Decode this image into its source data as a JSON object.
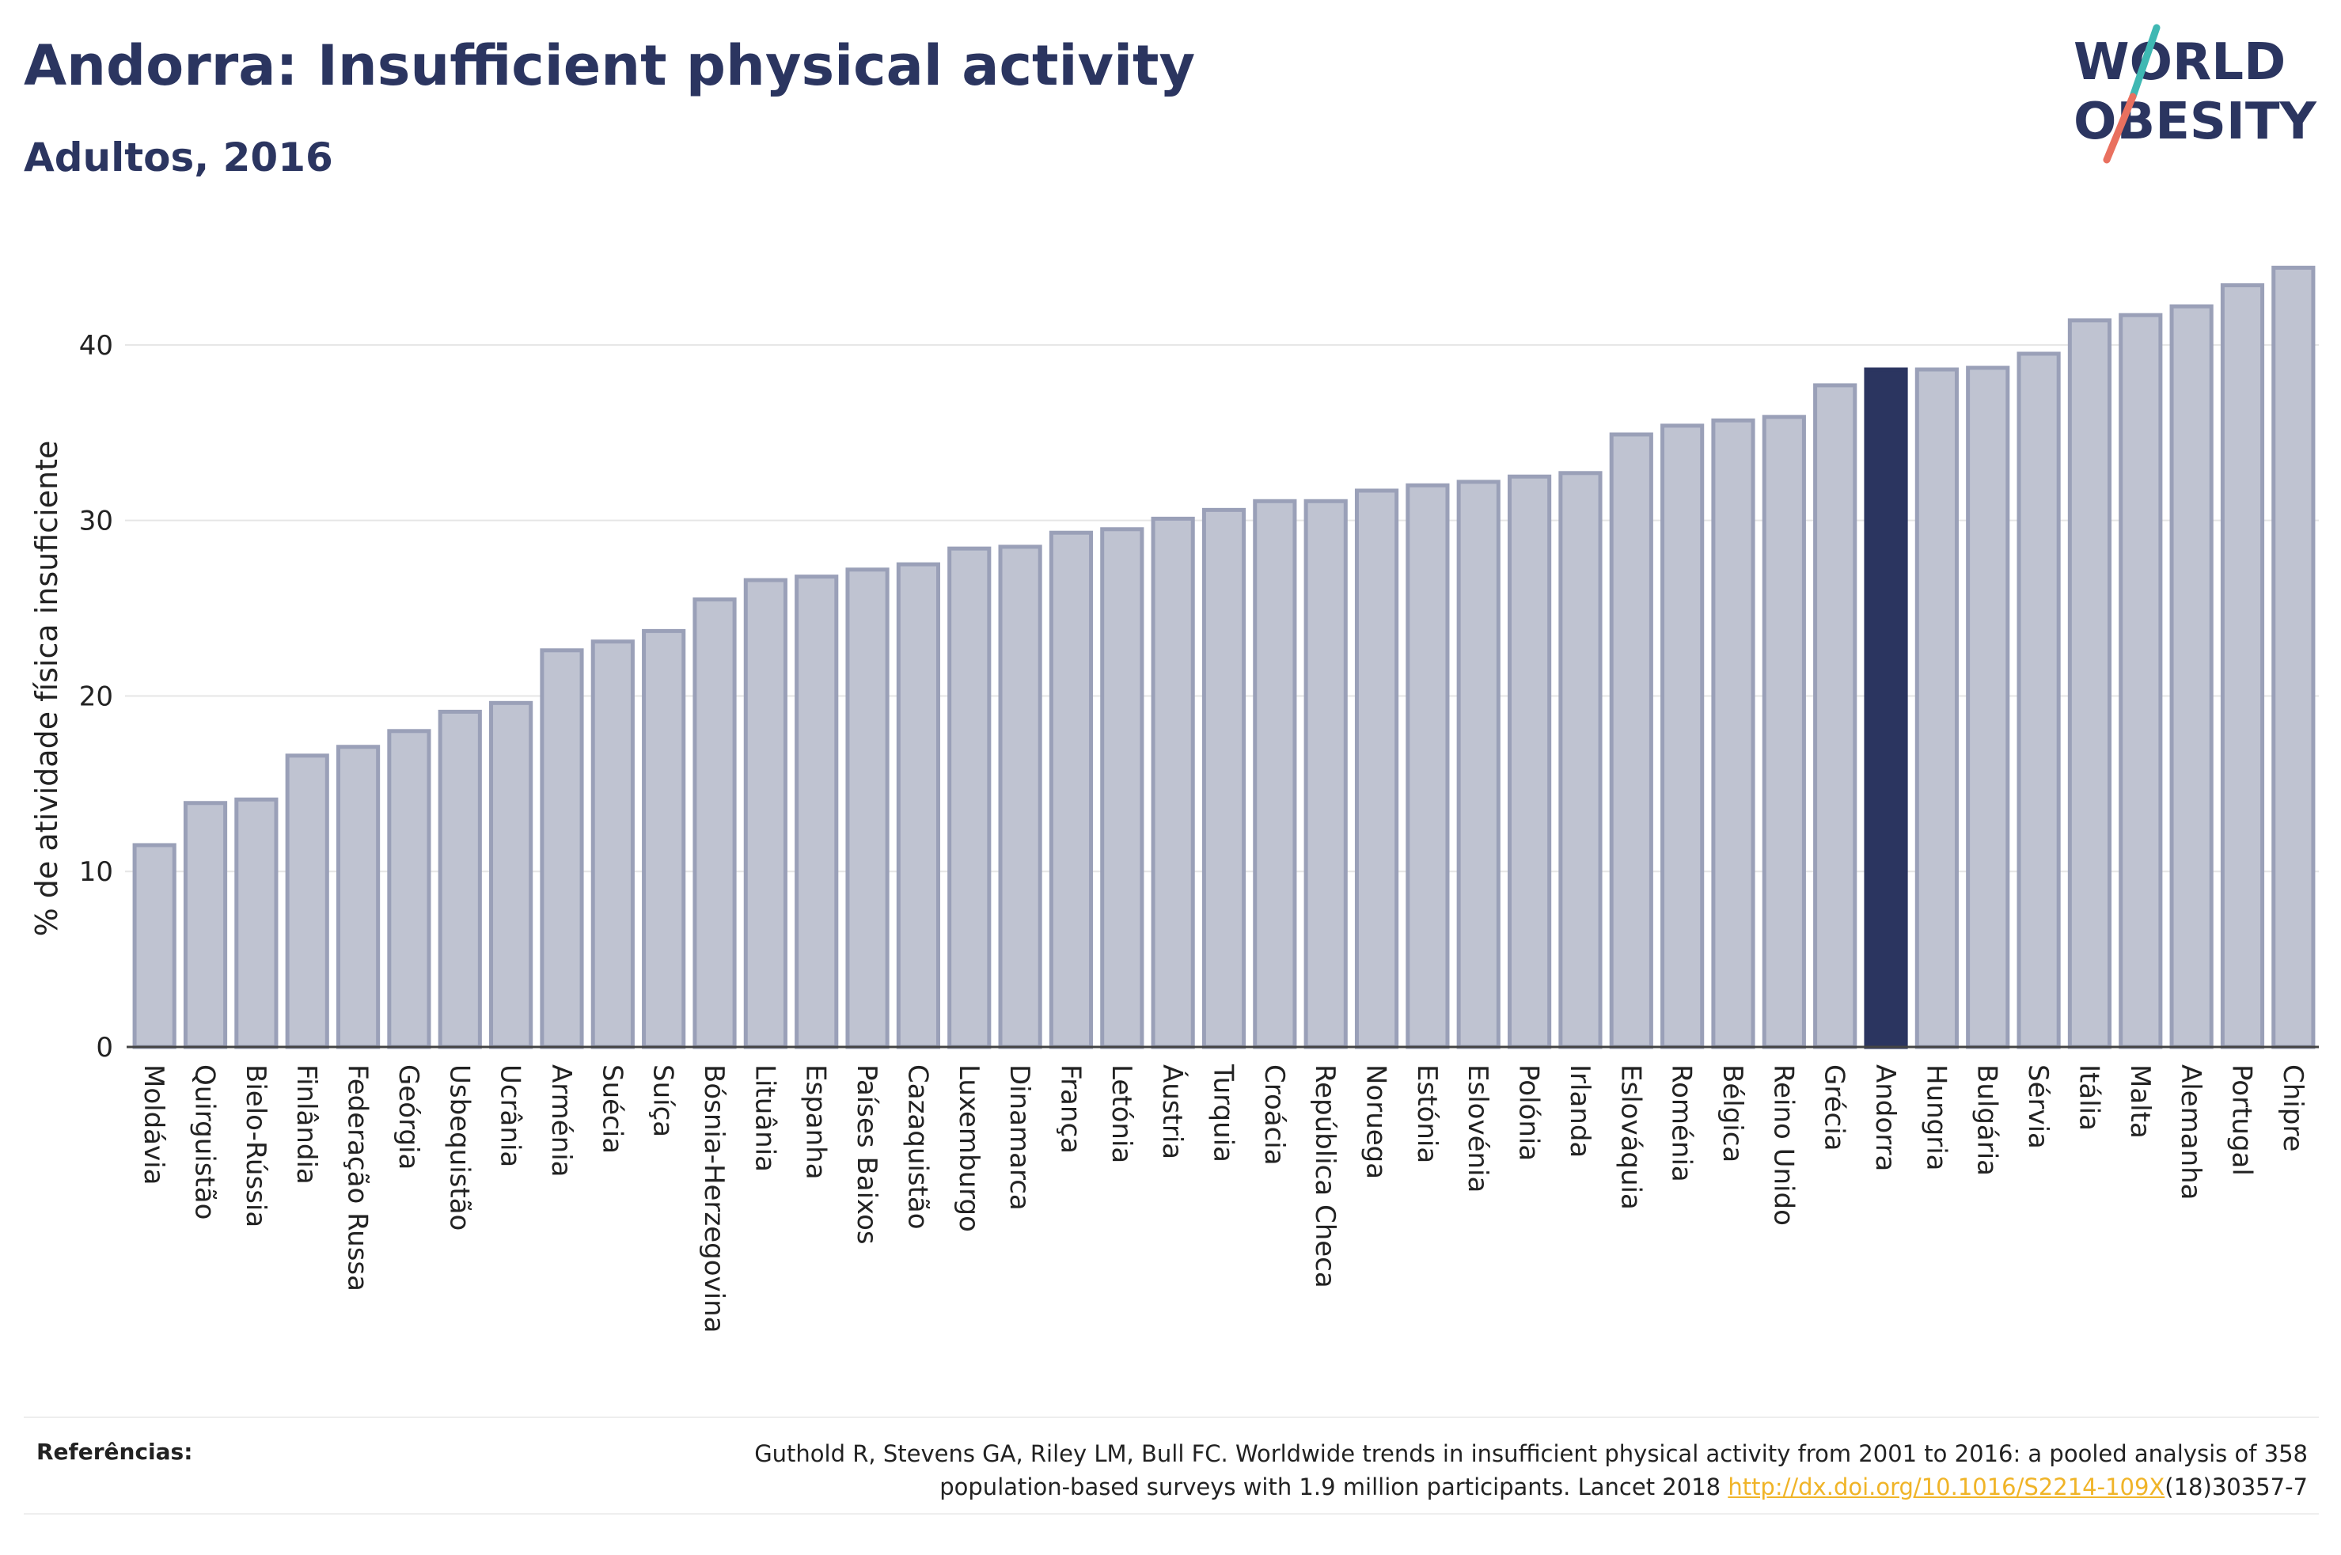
{
  "header": {
    "title": "Andorra: Insufficient physical activity",
    "subtitle": "Adultos, 2016"
  },
  "logo": {
    "line1": "WORLD",
    "line2": "OBESITY",
    "color_text": "#2b3560",
    "color_slash_top": "#3fb8b3",
    "color_slash_bottom": "#e9705f"
  },
  "chart_data": {
    "type": "bar",
    "ylabel": "% de atividade física insuficiente",
    "xlabel": "",
    "ylim": [
      0,
      45
    ],
    "yticks": [
      0,
      10,
      20,
      30,
      40
    ],
    "grid": true,
    "highlight": "Andorra",
    "bar_color": "#bfc3d1",
    "bar_edge_color": "#9aa0b8",
    "highlight_color": "#2b3560",
    "categories": [
      "Moldávia",
      "Quirguistão",
      "Bielo-Rússia",
      "Finlândia",
      "Federação Russa",
      "Geórgia",
      "Usbequistão",
      "Ucrânia",
      "Arménia",
      "Suécia",
      "Suíça",
      "Bósnia-Herzegovina",
      "Lituânia",
      "Espanha",
      "Países Baixos",
      "Cazaquistão",
      "Luxemburgo",
      "Dinamarca",
      "França",
      "Letónia",
      "Áustria",
      "Turquia",
      "Croácia",
      "República Checa",
      "Noruega",
      "Estónia",
      "Eslovénia",
      "Polónia",
      "Irlanda",
      "Eslováquia",
      "Roménia",
      "Bélgica",
      "Reino Unido",
      "Grécia",
      "Andorra",
      "Hungria",
      "Bulgária",
      "Sérvia",
      "Itália",
      "Malta",
      "Alemanha",
      "Portugal",
      "Chipre"
    ],
    "values": [
      11.5,
      13.9,
      14.1,
      16.6,
      17.1,
      18.0,
      19.1,
      19.6,
      22.6,
      23.1,
      23.7,
      25.5,
      26.6,
      26.8,
      27.2,
      27.5,
      28.4,
      28.5,
      29.3,
      29.5,
      30.1,
      30.6,
      31.1,
      31.1,
      31.7,
      32.0,
      32.2,
      32.5,
      32.7,
      34.9,
      35.4,
      35.7,
      35.9,
      37.7,
      38.6,
      38.6,
      38.7,
      39.5,
      41.4,
      41.7,
      42.2,
      43.4,
      44.4
    ]
  },
  "footer": {
    "ref_label": "Referências:",
    "ref_line1": "Guthold R, Stevens GA, Riley LM, Bull FC. Worldwide trends in insufficient physical activity from 2001 to 2016: a pooled analysis of 358",
    "ref_line2_pre": "population-based surveys with 1.9 million participants. Lancet 2018 ",
    "ref_link": "http://dx.doi.org/10.1016/S2214-109X",
    "ref_line2_post": "(18)30357-7"
  }
}
